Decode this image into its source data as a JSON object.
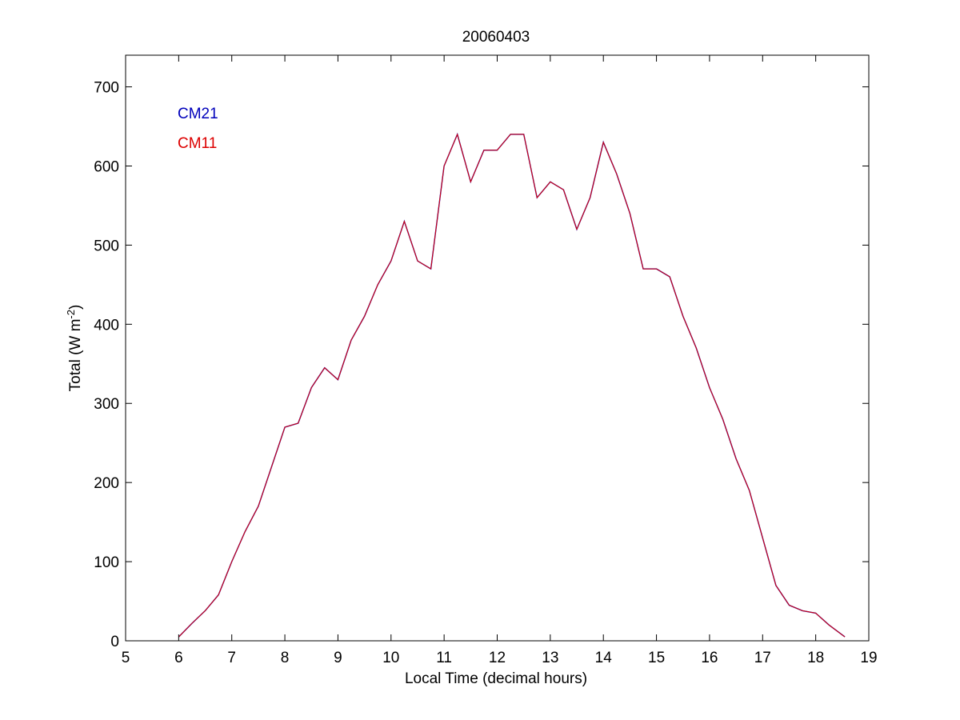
{
  "chart_data": {
    "type": "line",
    "title": "20060403",
    "xlabel": "Local Time (decimal hours)",
    "ylabel": {
      "main": "Total (W m",
      "exp": "-2",
      "close": ")"
    },
    "xlim": [
      5,
      19
    ],
    "ylim": [
      0,
      740
    ],
    "xticks": [
      5,
      6,
      7,
      8,
      9,
      10,
      11,
      12,
      13,
      14,
      15,
      16,
      17,
      18,
      19
    ],
    "yticks": [
      0,
      100,
      200,
      300,
      400,
      500,
      600,
      700
    ],
    "grid": false,
    "legend_position": "top-left",
    "series": [
      {
        "name": "CM21",
        "color": "#0000bb",
        "x": [
          6.0,
          6.25,
          6.5,
          6.75,
          7.0,
          7.25,
          7.5,
          7.75,
          8.0,
          8.25,
          8.5,
          8.75,
          9.0,
          9.25,
          9.5,
          9.75,
          10.0,
          10.25,
          10.5,
          10.75,
          11.0,
          11.25,
          11.5,
          11.75,
          12.0,
          12.25,
          12.5,
          12.75,
          13.0,
          13.25,
          13.5,
          13.75,
          14.0,
          14.25,
          14.5,
          14.75,
          15.0,
          15.25,
          15.5,
          15.75,
          16.0,
          16.25,
          16.5,
          16.75,
          17.0,
          17.25,
          17.5,
          17.75,
          18.0,
          18.25,
          18.55
        ],
        "y": [
          5,
          22,
          38,
          58,
          100,
          138,
          170,
          220,
          270,
          275,
          320,
          345,
          330,
          380,
          410,
          450,
          480,
          530,
          480,
          470,
          600,
          640,
          580,
          620,
          620,
          640,
          640,
          560,
          580,
          570,
          520,
          560,
          630,
          590,
          540,
          470,
          470,
          460,
          410,
          370,
          320,
          280,
          230,
          190,
          130,
          70,
          45,
          38,
          35,
          20,
          5
        ]
      },
      {
        "name": "CM11",
        "color": "#dd0000",
        "x": [
          6.0,
          6.25,
          6.5,
          6.75,
          7.0,
          7.25,
          7.5,
          7.75,
          8.0,
          8.25,
          8.5,
          8.75,
          9.0,
          9.25,
          9.5,
          9.75,
          10.0,
          10.25,
          10.5,
          10.75,
          11.0,
          11.25,
          11.5,
          11.75,
          12.0,
          12.25,
          12.5,
          12.75,
          13.0,
          13.25,
          13.5,
          13.75,
          14.0,
          14.25,
          14.5,
          14.75,
          15.0,
          15.25,
          15.5,
          15.75,
          16.0,
          16.25,
          16.5,
          16.75,
          17.0,
          17.25,
          17.5,
          17.75,
          18.0,
          18.25,
          18.55
        ],
        "y": [
          5,
          22,
          38,
          58,
          100,
          138,
          170,
          220,
          270,
          275,
          320,
          345,
          330,
          380,
          410,
          450,
          480,
          530,
          480,
          470,
          600,
          640,
          580,
          620,
          620,
          640,
          640,
          560,
          580,
          570,
          520,
          560,
          630,
          590,
          540,
          470,
          470,
          460,
          410,
          370,
          320,
          280,
          230,
          190,
          130,
          70,
          45,
          38,
          35,
          20,
          5
        ]
      }
    ]
  }
}
